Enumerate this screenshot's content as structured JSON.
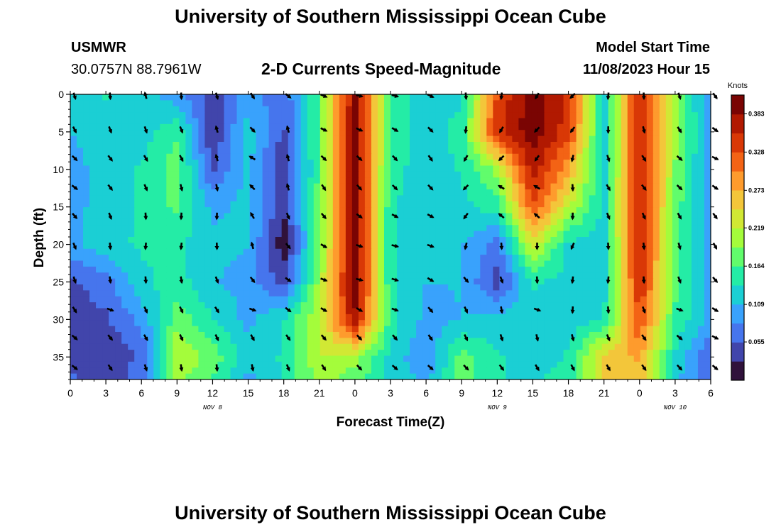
{
  "header": {
    "title": "University of Southern Mississippi Ocean Cube",
    "station": "USMWR",
    "coords": "30.0757N  88.7961W",
    "subtitle": "2-D Currents Speed-Magnitude",
    "model_start_label": "Model Start Time",
    "model_start_value": "11/08/2023 Hour 15",
    "footer_title": "University of Southern Mississippi Ocean Cube"
  },
  "chart_data": {
    "type": "heatmap",
    "title": "2-D Currents Speed-Magnitude",
    "xlabel": "Forecast Time(Z)",
    "ylabel": "Depth (ft)",
    "x_tick_labels": [
      "0",
      "3",
      "6",
      "9",
      "12",
      "15",
      "18",
      "21",
      "0",
      "3",
      "6",
      "9",
      "12",
      "15",
      "18",
      "21",
      "0",
      "3",
      "6"
    ],
    "x_range_hours": [
      0,
      54
    ],
    "y_ticks": [
      0,
      5,
      10,
      15,
      20,
      25,
      30,
      35
    ],
    "y_range": [
      0,
      38
    ],
    "date_labels": [
      {
        "text": "NOV 8",
        "hour": 12
      },
      {
        "text": "NOV 9",
        "hour": 36
      },
      {
        "text": "NOV 10",
        "hour": 51
      }
    ],
    "colorbar": {
      "title": "Knots",
      "ticks": [
        "0.383",
        "0.328",
        "0.273",
        "0.219",
        "0.164",
        "0.109",
        "0.055"
      ],
      "range": [
        0.0,
        0.41
      ]
    },
    "colors": [
      "#30123b",
      "#4145ab",
      "#4675ed",
      "#39a2fc",
      "#1bcfd4",
      "#24eca6",
      "#61fc6c",
      "#a4fc3b",
      "#d1e834",
      "#f3c63a",
      "#fe9b2d",
      "#f36315",
      "#d93806",
      "#b11901",
      "#7a0403"
    ],
    "speed_profile_hours": [
      0,
      3,
      6,
      9,
      12,
      15,
      18,
      21,
      24,
      27,
      30,
      33,
      36,
      39,
      42,
      45,
      48,
      51,
      54
    ],
    "speed_profile_depths": [
      0,
      5,
      10,
      15,
      20,
      25,
      30,
      35,
      38
    ],
    "speed_knots": [
      [
        0.12,
        0.14,
        0.12,
        0.09,
        0.04,
        0.1,
        0.06,
        0.17,
        0.39,
        0.16,
        0.12,
        0.13,
        0.33,
        0.4,
        0.35,
        0.12,
        0.37,
        0.2,
        0.08
      ],
      [
        0.11,
        0.12,
        0.12,
        0.16,
        0.03,
        0.12,
        0.05,
        0.17,
        0.4,
        0.16,
        0.12,
        0.15,
        0.35,
        0.4,
        0.34,
        0.12,
        0.37,
        0.2,
        0.09
      ],
      [
        0.1,
        0.12,
        0.14,
        0.18,
        0.05,
        0.12,
        0.03,
        0.17,
        0.4,
        0.15,
        0.12,
        0.14,
        0.2,
        0.37,
        0.28,
        0.12,
        0.37,
        0.19,
        0.09
      ],
      [
        0.1,
        0.12,
        0.14,
        0.17,
        0.1,
        0.12,
        0.03,
        0.18,
        0.4,
        0.14,
        0.12,
        0.13,
        0.15,
        0.33,
        0.22,
        0.13,
        0.37,
        0.18,
        0.09
      ],
      [
        0.1,
        0.13,
        0.14,
        0.14,
        0.12,
        0.11,
        0.01,
        0.18,
        0.4,
        0.14,
        0.12,
        0.11,
        0.07,
        0.23,
        0.13,
        0.12,
        0.37,
        0.17,
        0.09
      ],
      [
        0.05,
        0.07,
        0.13,
        0.15,
        0.11,
        0.1,
        0.04,
        0.2,
        0.4,
        0.14,
        0.11,
        0.11,
        0.04,
        0.14,
        0.13,
        0.12,
        0.36,
        0.17,
        0.09
      ],
      [
        0.04,
        0.05,
        0.09,
        0.18,
        0.14,
        0.1,
        0.14,
        0.22,
        0.38,
        0.15,
        0.1,
        0.11,
        0.12,
        0.13,
        0.12,
        0.14,
        0.33,
        0.16,
        0.1
      ],
      [
        0.04,
        0.03,
        0.06,
        0.22,
        0.18,
        0.12,
        0.14,
        0.22,
        0.2,
        0.13,
        0.08,
        0.18,
        0.14,
        0.12,
        0.14,
        0.25,
        0.28,
        0.13,
        0.05
      ],
      [
        0.06,
        0.04,
        0.07,
        0.2,
        0.16,
        0.1,
        0.14,
        0.2,
        0.18,
        0.13,
        0.1,
        0.18,
        0.14,
        0.13,
        0.15,
        0.25,
        0.26,
        0.12,
        0.05
      ]
    ],
    "vectors_note": "Black arrows show current direction at each 3-hour step and depth level"
  }
}
